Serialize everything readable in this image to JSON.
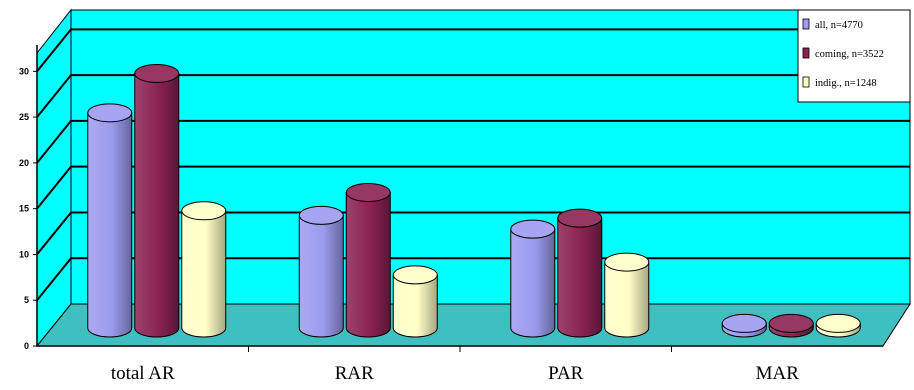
{
  "chart_data": {
    "type": "bar",
    "categories": [
      "total AR",
      "RAR",
      "PAR",
      "MAR"
    ],
    "series": [
      {
        "name": "all, n=4770",
        "values": [
          23.5,
          12.3,
          10.8,
          0.5
        ]
      },
      {
        "name": "coming, n=3522",
        "values": [
          27.8,
          14.8,
          12.0,
          0.5
        ]
      },
      {
        "name": "indig., n=1248",
        "values": [
          12.8,
          5.8,
          7.2,
          0.5
        ]
      }
    ],
    "yticks": [
      0,
      5,
      10,
      15,
      20,
      25,
      30
    ],
    "ylim": [
      0,
      32
    ],
    "legend_position": "top-right",
    "grid": true
  },
  "colors": {
    "wall": "#00FFFF",
    "floor": "#3FBFBF",
    "grid": "#000000",
    "series": [
      "#9B9BEF",
      "#8B2252",
      "#FFFFC8"
    ]
  }
}
